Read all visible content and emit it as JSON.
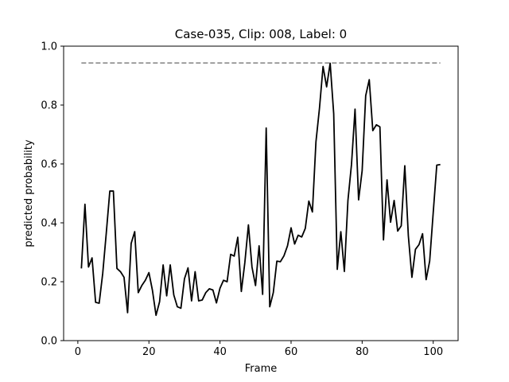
{
  "chart_data": {
    "type": "line",
    "title": "Case-035, Clip: 008, Label: 0",
    "xlabel": "Frame",
    "ylabel": "predicted probability",
    "xlim": [
      -4,
      107
    ],
    "ylim": [
      0,
      1.0
    ],
    "xticks": [
      0,
      20,
      40,
      60,
      80,
      100
    ],
    "yticks": [
      0.0,
      0.2,
      0.4,
      0.6,
      0.8,
      1.0
    ],
    "grid": false,
    "series": [
      {
        "name": "",
        "color": "#000000",
        "style": "solid",
        "x": [
          1,
          2,
          3,
          4,
          5,
          6,
          7,
          8,
          9,
          10,
          11,
          12,
          13,
          14,
          15,
          16,
          17,
          18,
          19,
          20,
          21,
          22,
          23,
          24,
          25,
          26,
          27,
          28,
          29,
          30,
          31,
          32,
          33,
          34,
          35,
          36,
          37,
          38,
          39,
          40,
          41,
          42,
          43,
          44,
          45,
          46,
          47,
          48,
          49,
          50,
          51,
          52,
          53,
          54,
          55,
          56,
          57,
          58,
          59,
          60,
          61,
          62,
          63,
          64,
          65,
          66,
          67,
          68,
          69,
          70,
          71,
          72,
          73,
          74,
          75,
          76,
          77,
          78,
          79,
          80,
          81,
          82,
          83,
          84,
          85,
          86,
          87,
          88,
          89,
          90,
          91,
          92,
          93,
          94,
          95,
          96,
          97,
          98,
          99,
          100,
          101,
          102
        ],
        "values": [
          0.245,
          0.463,
          0.25,
          0.281,
          0.13,
          0.127,
          0.228,
          0.365,
          0.508,
          0.508,
          0.245,
          0.234,
          0.215,
          0.095,
          0.33,
          0.37,
          0.163,
          0.187,
          0.205,
          0.231,
          0.17,
          0.086,
          0.132,
          0.257,
          0.152,
          0.257,
          0.155,
          0.115,
          0.11,
          0.21,
          0.247,
          0.135,
          0.234,
          0.135,
          0.138,
          0.163,
          0.176,
          0.172,
          0.128,
          0.178,
          0.205,
          0.2,
          0.293,
          0.287,
          0.351,
          0.167,
          0.266,
          0.393,
          0.25,
          0.187,
          0.322,
          0.157,
          0.722,
          0.115,
          0.163,
          0.27,
          0.268,
          0.288,
          0.322,
          0.383,
          0.328,
          0.358,
          0.352,
          0.381,
          0.474,
          0.437,
          0.675,
          0.79,
          0.931,
          0.862,
          0.942,
          0.77,
          0.242,
          0.37,
          0.235,
          0.476,
          0.598,
          0.786,
          0.478,
          0.577,
          0.832,
          0.886,
          0.713,
          0.733,
          0.726,
          0.342,
          0.546,
          0.402,
          0.476,
          0.372,
          0.39,
          0.594,
          0.356,
          0.215,
          0.31,
          0.326,
          0.363,
          0.207,
          0.27,
          0.435,
          0.596,
          0.598
        ]
      },
      {
        "name": "",
        "color": "#808080",
        "style": "dashed",
        "x": [
          1,
          102
        ],
        "values": [
          0.943,
          0.943
        ]
      }
    ]
  }
}
